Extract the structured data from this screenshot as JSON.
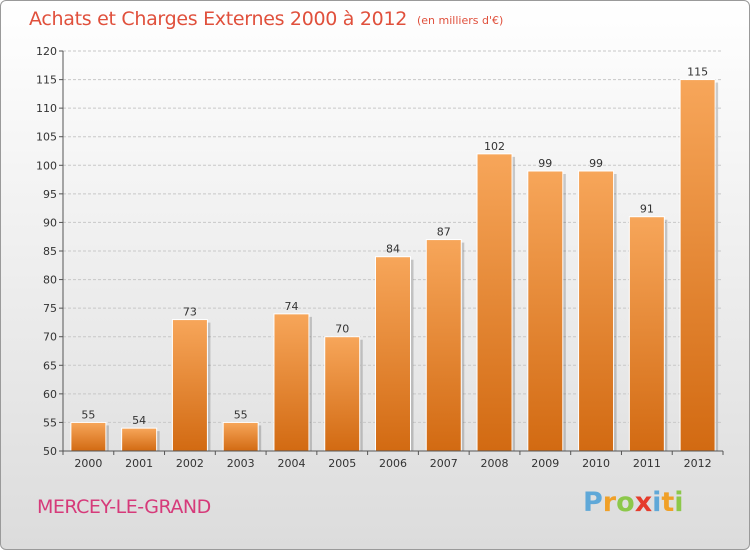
{
  "chart_data": {
    "type": "bar",
    "title": "Achats et Charges Externes 2000 à 2012",
    "subtitle": "(en milliers d'€)",
    "categories": [
      "2000",
      "2001",
      "2002",
      "2003",
      "2004",
      "2005",
      "2006",
      "2007",
      "2008",
      "2009",
      "2010",
      "2011",
      "2012"
    ],
    "values": [
      55,
      54,
      73,
      55,
      74,
      70,
      84,
      87,
      102,
      99,
      99,
      91,
      115
    ],
    "ylim": [
      50,
      120
    ],
    "yticks": [
      50,
      55,
      60,
      65,
      70,
      75,
      80,
      85,
      90,
      95,
      100,
      105,
      110,
      115,
      120
    ],
    "grid": true,
    "legend": "none",
    "bar_color": "#f08a2a"
  },
  "footer": {
    "place": "MERCEY-LE-GRAND",
    "brand": [
      "P",
      "r",
      "o",
      "x",
      "i",
      "t",
      "i"
    ],
    "brand_colors": [
      "#5fa8d8",
      "#f0a028",
      "#8cc84a",
      "#e53c2c",
      "#5fa8d8",
      "#f0a028",
      "#8cc84a"
    ]
  }
}
